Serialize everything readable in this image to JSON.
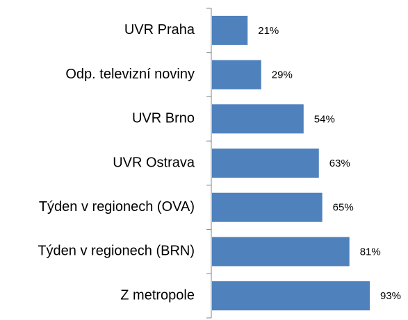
{
  "chart_data": {
    "type": "barh",
    "categories": [
      "UVR Praha",
      "Odp. televizní noviny",
      "UVR Brno",
      "UVR Ostrava",
      "Týden v regionech (OVA)",
      "Týden v regionech (BRN)",
      "Z metropole"
    ],
    "values": [
      21,
      29,
      54,
      63,
      65,
      81,
      93
    ],
    "value_labels": [
      "21%",
      "29%",
      "54%",
      "63%",
      "65%",
      "81%",
      "93%"
    ],
    "color": "#4f81bd"
  }
}
